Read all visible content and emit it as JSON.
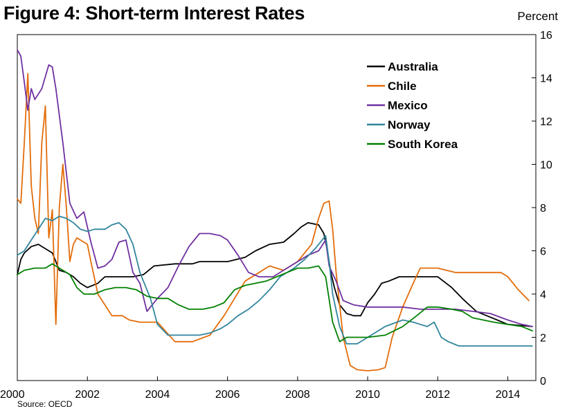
{
  "chart_data": {
    "type": "line",
    "title": "Figure 4: Short-term Interest Rates",
    "ylabel": "Percent",
    "source": "Source: OECD",
    "xlim": [
      2000,
      2014.8
    ],
    "ylim": [
      0,
      16
    ],
    "x_ticks": [
      2000,
      2002,
      2004,
      2006,
      2008,
      2010,
      2012,
      2014
    ],
    "y_ticks": [
      0,
      2,
      4,
      6,
      8,
      10,
      12,
      14,
      16
    ],
    "grid": false,
    "legend_position": "top-right",
    "series": [
      {
        "name": "Australia",
        "color": "#000000",
        "x": [
          2000,
          2000.1,
          2000.2,
          2000.4,
          2000.6,
          2001.0,
          2001.2,
          2001.4,
          2001.6,
          2001.8,
          2002.0,
          2002.3,
          2002.5,
          2003.0,
          2003.3,
          2003.6,
          2003.9,
          2004.5,
          2005.0,
          2005.2,
          2006.0,
          2006.5,
          2006.8,
          2007.2,
          2007.6,
          2007.9,
          2008.1,
          2008.3,
          2008.6,
          2008.75,
          2008.85,
          2008.95,
          2009.05,
          2009.2,
          2009.4,
          2009.6,
          2009.8,
          2010.0,
          2010.2,
          2010.4,
          2010.6,
          2010.9,
          2011.3,
          2011.7,
          2011.9,
          2012.0,
          2012.4,
          2012.7,
          2012.9,
          2013.1,
          2013.4,
          2013.7,
          2014.0,
          2014.7
        ],
        "values": [
          4.9,
          5.6,
          5.9,
          6.2,
          6.3,
          5.9,
          5.1,
          5.0,
          4.8,
          4.5,
          4.3,
          4.5,
          4.8,
          4.8,
          4.8,
          4.9,
          5.3,
          5.4,
          5.4,
          5.5,
          5.5,
          5.7,
          6.0,
          6.3,
          6.4,
          6.8,
          7.1,
          7.3,
          7.2,
          6.8,
          6.0,
          5.0,
          4.3,
          3.5,
          3.1,
          3.0,
          3.0,
          3.6,
          4.0,
          4.5,
          4.6,
          4.8,
          4.8,
          4.8,
          4.8,
          4.8,
          4.3,
          3.8,
          3.5,
          3.2,
          3.0,
          2.8,
          2.6,
          2.5
        ]
      },
      {
        "name": "Chile",
        "color": "#e36c0a",
        "x": [
          2000,
          2000.1,
          2000.2,
          2000.3,
          2000.4,
          2000.5,
          2000.6,
          2000.7,
          2000.8,
          2000.9,
          2001.0,
          2001.1,
          2001.2,
          2001.3,
          2001.4,
          2001.5,
          2001.6,
          2001.7,
          2001.8,
          2002.0,
          2002.1,
          2002.3,
          2002.5,
          2002.7,
          2003.0,
          2003.2,
          2003.5,
          2004.0,
          2004.5,
          2005.0,
          2005.5,
          2005.9,
          2006.2,
          2006.5,
          2006.9,
          2007.2,
          2007.6,
          2008.0,
          2008.4,
          2008.6,
          2008.75,
          2008.9,
          2009.0,
          2009.1,
          2009.3,
          2009.5,
          2009.7,
          2010.0,
          2010.3,
          2010.5,
          2010.7,
          2011.0,
          2011.3,
          2011.5,
          2012.0,
          2012.5,
          2013.0,
          2013.5,
          2013.8,
          2014.0,
          2014.3,
          2014.6
        ],
        "values": [
          8.4,
          8.2,
          11.0,
          14.2,
          9.0,
          7.5,
          6.8,
          11.0,
          12.7,
          6.6,
          7.9,
          2.6,
          8.0,
          10.0,
          8.0,
          5.5,
          6.3,
          6.6,
          6.5,
          6.3,
          5.5,
          4.0,
          3.5,
          3.0,
          3.0,
          2.8,
          2.7,
          2.7,
          1.8,
          1.8,
          2.1,
          3.0,
          3.8,
          4.6,
          5.0,
          5.3,
          5.1,
          5.5,
          6.3,
          7.5,
          8.2,
          8.3,
          7.0,
          5.0,
          2.0,
          0.7,
          0.5,
          0.45,
          0.5,
          0.6,
          2.0,
          3.4,
          4.5,
          5.2,
          5.2,
          5.0,
          5.0,
          5.0,
          5.0,
          4.8,
          4.2,
          3.7
        ]
      },
      {
        "name": "Mexico",
        "color": "#7030a0",
        "x": [
          2000,
          2000.1,
          2000.2,
          2000.3,
          2000.4,
          2000.5,
          2000.7,
          2000.9,
          2001.0,
          2001.1,
          2001.3,
          2001.5,
          2001.7,
          2001.9,
          2002.1,
          2002.3,
          2002.5,
          2002.7,
          2002.9,
          2003.1,
          2003.3,
          2003.5,
          2003.7,
          2004.0,
          2004.3,
          2004.6,
          2004.9,
          2005.2,
          2005.5,
          2005.8,
          2006.0,
          2006.3,
          2006.6,
          2006.9,
          2007.3,
          2007.7,
          2008.0,
          2008.3,
          2008.6,
          2008.8,
          2008.9,
          2009.1,
          2009.3,
          2009.6,
          2010.0,
          2010.5,
          2011.0,
          2011.5,
          2012.0,
          2012.5,
          2013.0,
          2013.5,
          2014.0,
          2014.4,
          2014.7
        ],
        "values": [
          15.3,
          15.0,
          13.8,
          12.5,
          13.5,
          13.0,
          13.5,
          14.6,
          14.5,
          13.5,
          11.0,
          8.2,
          7.5,
          7.8,
          6.4,
          5.2,
          5.3,
          5.6,
          6.4,
          6.5,
          5.0,
          4.5,
          3.2,
          3.8,
          4.3,
          5.3,
          6.2,
          6.8,
          6.8,
          6.7,
          6.5,
          5.8,
          5.0,
          4.8,
          4.8,
          5.2,
          5.5,
          5.8,
          6.0,
          6.5,
          5.3,
          4.6,
          3.7,
          3.5,
          3.4,
          3.4,
          3.4,
          3.3,
          3.3,
          3.3,
          3.2,
          3.1,
          2.8,
          2.6,
          2.5
        ]
      },
      {
        "name": "Norway",
        "color": "#31859c",
        "x": [
          2000,
          2000.2,
          2000.4,
          2000.6,
          2000.8,
          2001.0,
          2001.2,
          2001.4,
          2001.6,
          2001.8,
          2002.0,
          2002.2,
          2002.5,
          2002.7,
          2002.9,
          2003.1,
          2003.3,
          2003.5,
          2003.8,
          2004.0,
          2004.3,
          2004.8,
          2005.2,
          2005.5,
          2005.8,
          2006.0,
          2006.3,
          2006.6,
          2006.9,
          2007.2,
          2007.5,
          2007.9,
          2008.2,
          2008.5,
          2008.8,
          2008.9,
          2009.0,
          2009.2,
          2009.4,
          2009.7,
          2010.0,
          2010.5,
          2011.0,
          2011.3,
          2011.5,
          2011.7,
          2011.9,
          2012.1,
          2012.3,
          2012.6,
          2013.0,
          2013.5,
          2014.0,
          2014.7
        ],
        "values": [
          5.8,
          6.0,
          6.5,
          7.0,
          7.5,
          7.4,
          7.6,
          7.5,
          7.3,
          7.0,
          6.9,
          7.0,
          7.0,
          7.2,
          7.3,
          7.0,
          6.3,
          5.0,
          3.8,
          2.6,
          2.1,
          2.1,
          2.1,
          2.2,
          2.4,
          2.6,
          3.0,
          3.3,
          3.7,
          4.2,
          4.8,
          5.2,
          5.6,
          6.1,
          6.7,
          5.5,
          4.0,
          2.5,
          1.7,
          1.7,
          2.0,
          2.5,
          2.8,
          2.7,
          2.6,
          2.5,
          2.7,
          2.0,
          1.8,
          1.6,
          1.6,
          1.6,
          1.6,
          1.6
        ]
      },
      {
        "name": "South Korea",
        "color": "#008000",
        "x": [
          2000,
          2000.2,
          2000.5,
          2000.8,
          2001.0,
          2001.2,
          2001.5,
          2001.7,
          2001.9,
          2002.2,
          2002.5,
          2002.8,
          2003.1,
          2003.4,
          2003.7,
          2004.0,
          2004.3,
          2004.6,
          2004.9,
          2005.3,
          2005.6,
          2005.9,
          2006.2,
          2006.5,
          2006.8,
          2007.1,
          2007.4,
          2007.7,
          2008.0,
          2008.3,
          2008.6,
          2008.8,
          2009.0,
          2009.2,
          2009.4,
          2009.7,
          2010.0,
          2010.5,
          2011.0,
          2011.4,
          2011.7,
          2012.0,
          2012.4,
          2012.7,
          2013.0,
          2013.3,
          2013.6,
          2014.0,
          2014.4,
          2014.7
        ],
        "values": [
          4.9,
          5.1,
          5.2,
          5.2,
          5.4,
          5.2,
          4.9,
          4.3,
          4.0,
          4.0,
          4.2,
          4.3,
          4.3,
          4.2,
          3.9,
          3.8,
          3.8,
          3.5,
          3.3,
          3.3,
          3.4,
          3.6,
          4.2,
          4.4,
          4.5,
          4.6,
          4.8,
          5.0,
          5.2,
          5.2,
          5.3,
          4.8,
          2.7,
          1.8,
          2.0,
          2.0,
          2.0,
          2.1,
          2.5,
          3.0,
          3.4,
          3.4,
          3.3,
          3.2,
          2.9,
          2.8,
          2.7,
          2.6,
          2.5,
          2.3
        ]
      }
    ]
  }
}
